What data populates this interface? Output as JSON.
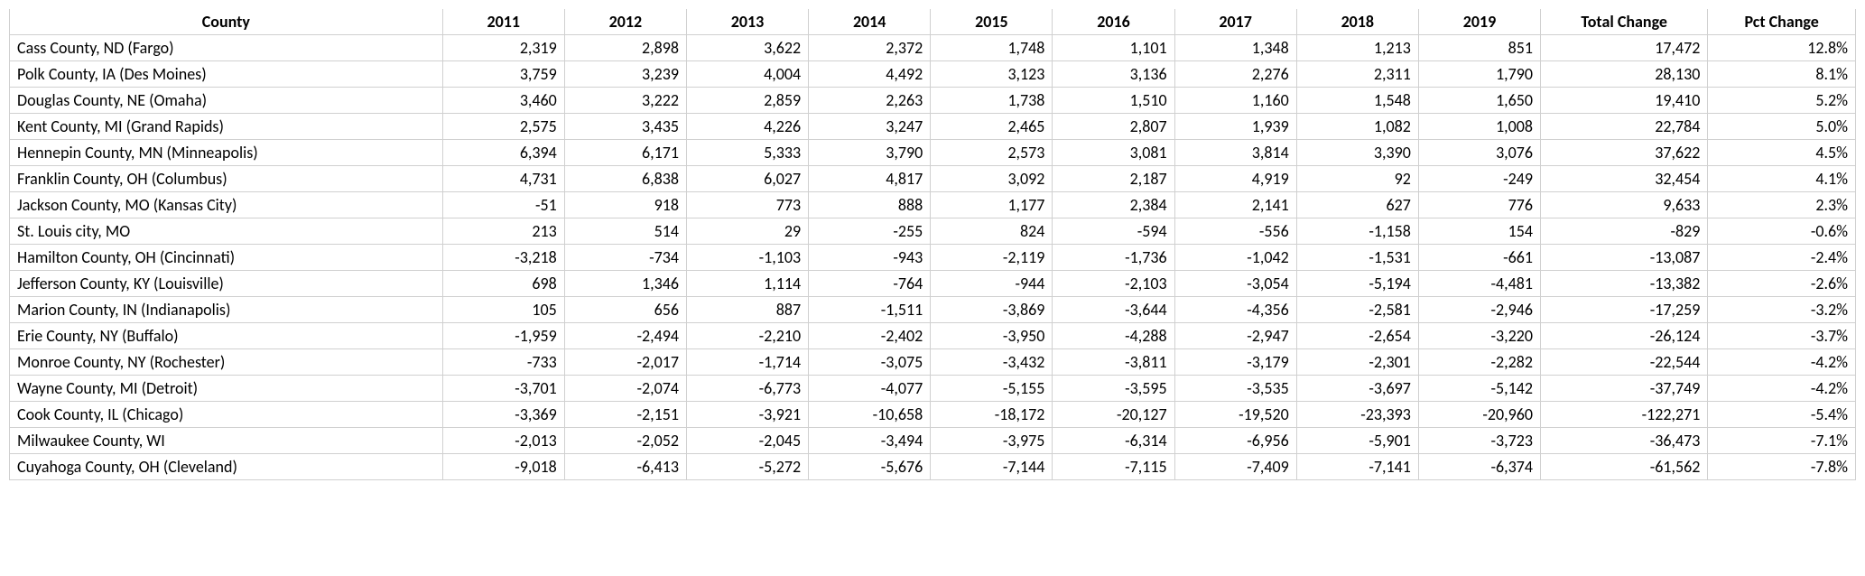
{
  "table": {
    "columns": [
      "County",
      "2011",
      "2012",
      "2013",
      "2014",
      "2015",
      "2016",
      "2017",
      "2018",
      "2019",
      "Total Change",
      "Pct Change"
    ],
    "rows": [
      {
        "county": "Cass County, ND (Fargo)",
        "y2011": 2319,
        "y2012": 2898,
        "y2013": 3622,
        "y2014": 2372,
        "y2015": 1748,
        "y2016": 1101,
        "y2017": 1348,
        "y2018": 1213,
        "y2019": 851,
        "total": 17472,
        "pct": 12.8
      },
      {
        "county": "Polk County, IA (Des Moines)",
        "y2011": 3759,
        "y2012": 3239,
        "y2013": 4004,
        "y2014": 4492,
        "y2015": 3123,
        "y2016": 3136,
        "y2017": 2276,
        "y2018": 2311,
        "y2019": 1790,
        "total": 28130,
        "pct": 8.1
      },
      {
        "county": "Douglas County, NE (Omaha)",
        "y2011": 3460,
        "y2012": 3222,
        "y2013": 2859,
        "y2014": 2263,
        "y2015": 1738,
        "y2016": 1510,
        "y2017": 1160,
        "y2018": 1548,
        "y2019": 1650,
        "total": 19410,
        "pct": 5.2
      },
      {
        "county": "Kent County, MI (Grand Rapids)",
        "y2011": 2575,
        "y2012": 3435,
        "y2013": 4226,
        "y2014": 3247,
        "y2015": 2465,
        "y2016": 2807,
        "y2017": 1939,
        "y2018": 1082,
        "y2019": 1008,
        "total": 22784,
        "pct": 5.0
      },
      {
        "county": "Hennepin County, MN (Minneapolis)",
        "y2011": 6394,
        "y2012": 6171,
        "y2013": 5333,
        "y2014": 3790,
        "y2015": 2573,
        "y2016": 3081,
        "y2017": 3814,
        "y2018": 3390,
        "y2019": 3076,
        "total": 37622,
        "pct": 4.5
      },
      {
        "county": "Franklin County, OH (Columbus)",
        "y2011": 4731,
        "y2012": 6838,
        "y2013": 6027,
        "y2014": 4817,
        "y2015": 3092,
        "y2016": 2187,
        "y2017": 4919,
        "y2018": 92,
        "y2019": -249,
        "total": 32454,
        "pct": 4.1
      },
      {
        "county": "Jackson County, MO (Kansas City)",
        "y2011": -51,
        "y2012": 918,
        "y2013": 773,
        "y2014": 888,
        "y2015": 1177,
        "y2016": 2384,
        "y2017": 2141,
        "y2018": 627,
        "y2019": 776,
        "total": 9633,
        "pct": 2.3
      },
      {
        "county": "St. Louis city, MO",
        "y2011": 213,
        "y2012": 514,
        "y2013": 29,
        "y2014": -255,
        "y2015": 824,
        "y2016": -594,
        "y2017": -556,
        "y2018": -1158,
        "y2019": 154,
        "total": -829,
        "pct": -0.6
      },
      {
        "county": "Hamilton County, OH (Cincinnati)",
        "y2011": -3218,
        "y2012": -734,
        "y2013": -1103,
        "y2014": -943,
        "y2015": -2119,
        "y2016": -1736,
        "y2017": -1042,
        "y2018": -1531,
        "y2019": -661,
        "total": -13087,
        "pct": -2.4
      },
      {
        "county": "Jefferson County, KY (Louisville)",
        "y2011": 698,
        "y2012": 1346,
        "y2013": 1114,
        "y2014": -764,
        "y2015": -944,
        "y2016": -2103,
        "y2017": -3054,
        "y2018": -5194,
        "y2019": -4481,
        "total": -13382,
        "pct": -2.6
      },
      {
        "county": "Marion County, IN (Indianapolis)",
        "y2011": 105,
        "y2012": 656,
        "y2013": 887,
        "y2014": -1511,
        "y2015": -3869,
        "y2016": -3644,
        "y2017": -4356,
        "y2018": -2581,
        "y2019": -2946,
        "total": -17259,
        "pct": -3.2
      },
      {
        "county": "Erie County, NY (Buffalo)",
        "y2011": -1959,
        "y2012": -2494,
        "y2013": -2210,
        "y2014": -2402,
        "y2015": -3950,
        "y2016": -4288,
        "y2017": -2947,
        "y2018": -2654,
        "y2019": -3220,
        "total": -26124,
        "pct": -3.7
      },
      {
        "county": "Monroe County, NY (Rochester)",
        "y2011": -733,
        "y2012": -2017,
        "y2013": -1714,
        "y2014": -3075,
        "y2015": -3432,
        "y2016": -3811,
        "y2017": -3179,
        "y2018": -2301,
        "y2019": -2282,
        "total": -22544,
        "pct": -4.2
      },
      {
        "county": "Wayne County, MI (Detroit)",
        "y2011": -3701,
        "y2012": -2074,
        "y2013": -6773,
        "y2014": -4077,
        "y2015": -5155,
        "y2016": -3595,
        "y2017": -3535,
        "y2018": -3697,
        "y2019": -5142,
        "total": -37749,
        "pct": -4.2
      },
      {
        "county": "Cook County, IL (Chicago)",
        "y2011": -3369,
        "y2012": -2151,
        "y2013": -3921,
        "y2014": -10658,
        "y2015": -18172,
        "y2016": -20127,
        "y2017": -19520,
        "y2018": -23393,
        "y2019": -20960,
        "total": -122271,
        "pct": -5.4
      },
      {
        "county": "Milwaukee County, WI",
        "y2011": -2013,
        "y2012": -2052,
        "y2013": -2045,
        "y2014": -3494,
        "y2015": -3975,
        "y2016": -6314,
        "y2017": -6956,
        "y2018": -5901,
        "y2019": -3723,
        "total": -36473,
        "pct": -7.1
      },
      {
        "county": "Cuyahoga County, OH (Cleveland)",
        "y2011": -9018,
        "y2012": -6413,
        "y2013": -5272,
        "y2014": -5676,
        "y2015": -7144,
        "y2016": -7115,
        "y2017": -7409,
        "y2018": -7141,
        "y2019": -6374,
        "total": -61562,
        "pct": -7.8
      }
    ]
  }
}
